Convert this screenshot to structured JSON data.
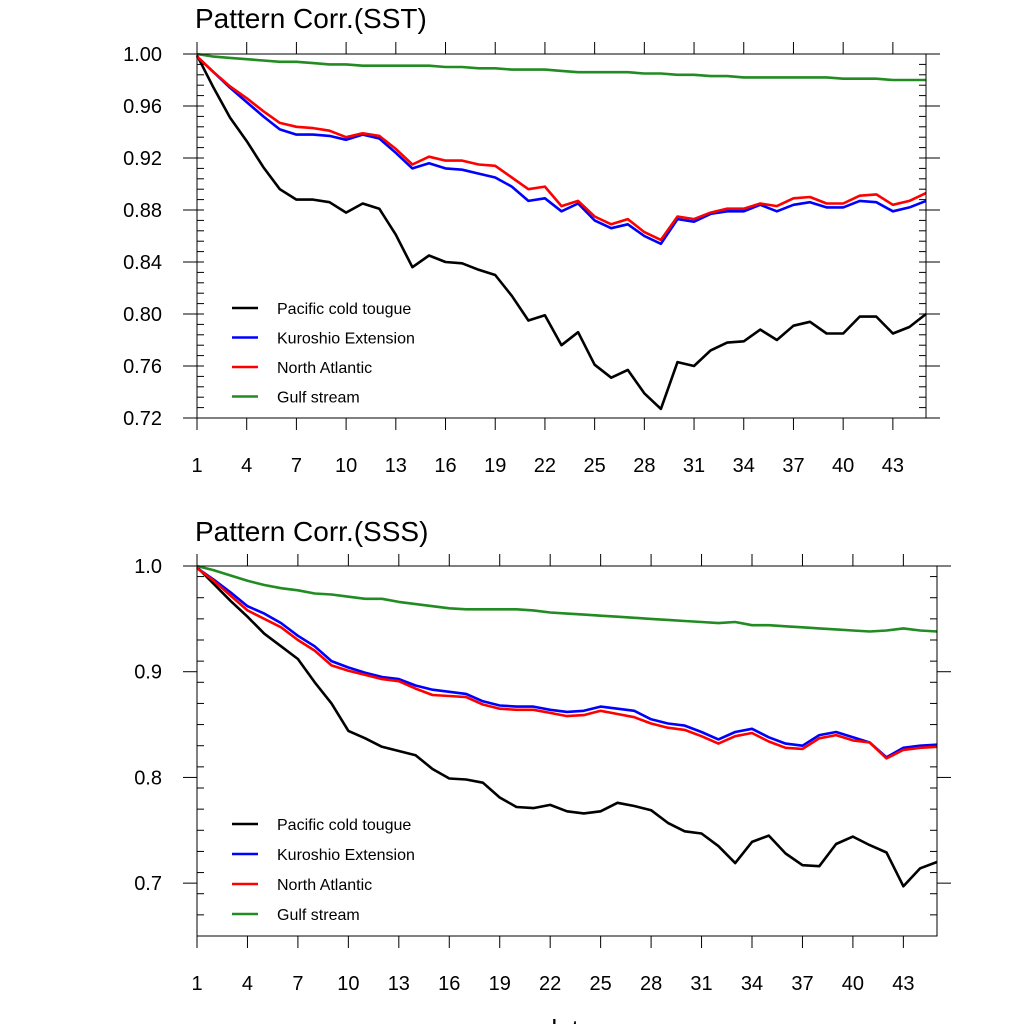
{
  "chart_data": [
    {
      "type": "line",
      "title": "Pattern Corr.(SST)",
      "xlabel": "",
      "ylabel": "",
      "x_range": [
        1,
        45
      ],
      "x_ticks": [
        1,
        4,
        7,
        10,
        13,
        16,
        19,
        22,
        25,
        28,
        31,
        34,
        37,
        40,
        43
      ],
      "ylim": [
        0.72,
        1.0
      ],
      "y_ticks": [
        "1.00",
        "0.96",
        "0.92",
        "0.88",
        "0.84",
        "0.80",
        "0.76",
        "0.72"
      ],
      "y_tick_values": [
        1.0,
        0.96,
        0.92,
        0.88,
        0.84,
        0.8,
        0.76,
        0.72
      ],
      "grid": false,
      "legend_position": "bottom-left",
      "series": [
        {
          "name": "Pacific cold tougue",
          "color": "#000000",
          "values": [
            0.999,
            0.974,
            0.951,
            0.933,
            0.913,
            0.896,
            0.888,
            0.888,
            0.886,
            0.878,
            0.885,
            0.881,
            0.861,
            0.836,
            0.845,
            0.84,
            0.839,
            0.834,
            0.83,
            0.814,
            0.795,
            0.799,
            0.776,
            0.786,
            0.761,
            0.751,
            0.757,
            0.739,
            0.727,
            0.763,
            0.76,
            0.772,
            0.778,
            0.779,
            0.788,
            0.78,
            0.791,
            0.794,
            0.785,
            0.785,
            0.798,
            0.798,
            0.785,
            0.79,
            0.8
          ]
        },
        {
          "name": "Kuroshio Extension",
          "color": "#0000ff",
          "values": [
            0.998,
            0.986,
            0.974,
            0.963,
            0.952,
            0.942,
            0.938,
            0.938,
            0.937,
            0.934,
            0.938,
            0.935,
            0.924,
            0.912,
            0.916,
            0.912,
            0.911,
            0.908,
            0.905,
            0.898,
            0.887,
            0.889,
            0.879,
            0.885,
            0.872,
            0.866,
            0.869,
            0.86,
            0.854,
            0.873,
            0.871,
            0.877,
            0.879,
            0.879,
            0.884,
            0.879,
            0.884,
            0.886,
            0.882,
            0.882,
            0.887,
            0.886,
            0.879,
            0.882,
            0.887
          ]
        },
        {
          "name": "North Atlantic",
          "color": "#ff0000",
          "values": [
            0.998,
            0.986,
            0.975,
            0.966,
            0.956,
            0.947,
            0.944,
            0.943,
            0.941,
            0.936,
            0.939,
            0.937,
            0.927,
            0.915,
            0.921,
            0.918,
            0.918,
            0.915,
            0.914,
            0.905,
            0.896,
            0.898,
            0.883,
            0.887,
            0.875,
            0.869,
            0.873,
            0.863,
            0.857,
            0.875,
            0.873,
            0.878,
            0.881,
            0.881,
            0.885,
            0.883,
            0.889,
            0.89,
            0.885,
            0.885,
            0.891,
            0.892,
            0.884,
            0.887,
            0.893
          ]
        },
        {
          "name": "Gulf stream",
          "color": "#228b22",
          "values": [
            1.0,
            0.998,
            0.997,
            0.996,
            0.995,
            0.994,
            0.994,
            0.993,
            0.992,
            0.992,
            0.991,
            0.991,
            0.991,
            0.991,
            0.991,
            0.99,
            0.99,
            0.989,
            0.989,
            0.988,
            0.988,
            0.988,
            0.987,
            0.986,
            0.986,
            0.986,
            0.986,
            0.985,
            0.985,
            0.984,
            0.984,
            0.983,
            0.983,
            0.982,
            0.982,
            0.982,
            0.982,
            0.982,
            0.982,
            0.981,
            0.981,
            0.981,
            0.98,
            0.98,
            0.98
          ]
        }
      ]
    },
    {
      "type": "line",
      "title": "Pattern Corr.(SSS)",
      "xlabel": "date",
      "ylabel": "",
      "x_range": [
        1,
        45
      ],
      "x_ticks": [
        1,
        4,
        7,
        10,
        13,
        16,
        19,
        22,
        25,
        28,
        31,
        34,
        37,
        40,
        43
      ],
      "ylim": [
        0.65,
        1.0
      ],
      "y_ticks": [
        "1.0",
        "0.9",
        "0.8",
        "0.7"
      ],
      "y_tick_values": [
        1.0,
        0.9,
        0.8,
        0.7
      ],
      "grid": false,
      "legend_position": "bottom-left",
      "series": [
        {
          "name": "Pacific cold tougue",
          "color": "#000000",
          "values": [
            0.999,
            0.983,
            0.967,
            0.952,
            0.936,
            0.924,
            0.912,
            0.89,
            0.87,
            0.844,
            0.837,
            0.829,
            0.825,
            0.821,
            0.808,
            0.799,
            0.798,
            0.795,
            0.781,
            0.772,
            0.771,
            0.774,
            0.768,
            0.766,
            0.768,
            0.776,
            0.773,
            0.769,
            0.757,
            0.749,
            0.747,
            0.735,
            0.719,
            0.739,
            0.745,
            0.728,
            0.717,
            0.716,
            0.737,
            0.744,
            0.736,
            0.729,
            0.697,
            0.714,
            0.72
          ]
        },
        {
          "name": "Kuroshio Extension",
          "color": "#0000ff",
          "values": [
            0.998,
            0.987,
            0.975,
            0.962,
            0.955,
            0.946,
            0.934,
            0.924,
            0.91,
            0.904,
            0.899,
            0.895,
            0.893,
            0.887,
            0.883,
            0.881,
            0.879,
            0.872,
            0.868,
            0.867,
            0.867,
            0.864,
            0.862,
            0.863,
            0.867,
            0.865,
            0.863,
            0.855,
            0.851,
            0.849,
            0.843,
            0.836,
            0.843,
            0.846,
            0.838,
            0.832,
            0.83,
            0.84,
            0.843,
            0.838,
            0.833,
            0.819,
            0.828,
            0.83,
            0.831
          ]
        },
        {
          "name": "North Atlantic",
          "color": "#ff0000",
          "values": [
            0.998,
            0.986,
            0.972,
            0.958,
            0.95,
            0.942,
            0.93,
            0.92,
            0.906,
            0.901,
            0.897,
            0.893,
            0.891,
            0.884,
            0.878,
            0.877,
            0.876,
            0.869,
            0.865,
            0.864,
            0.864,
            0.861,
            0.858,
            0.859,
            0.863,
            0.86,
            0.857,
            0.851,
            0.847,
            0.845,
            0.839,
            0.832,
            0.839,
            0.842,
            0.834,
            0.828,
            0.827,
            0.837,
            0.84,
            0.835,
            0.833,
            0.818,
            0.826,
            0.828,
            0.829
          ]
        },
        {
          "name": "Gulf stream",
          "color": "#228b22",
          "values": [
            1.0,
            0.996,
            0.991,
            0.986,
            0.982,
            0.979,
            0.977,
            0.974,
            0.973,
            0.971,
            0.969,
            0.969,
            0.966,
            0.964,
            0.962,
            0.96,
            0.959,
            0.959,
            0.959,
            0.959,
            0.958,
            0.956,
            0.955,
            0.954,
            0.953,
            0.952,
            0.951,
            0.95,
            0.949,
            0.948,
            0.947,
            0.946,
            0.947,
            0.944,
            0.944,
            0.943,
            0.942,
            0.941,
            0.94,
            0.939,
            0.938,
            0.939,
            0.941,
            0.939,
            0.938
          ]
        }
      ]
    }
  ]
}
